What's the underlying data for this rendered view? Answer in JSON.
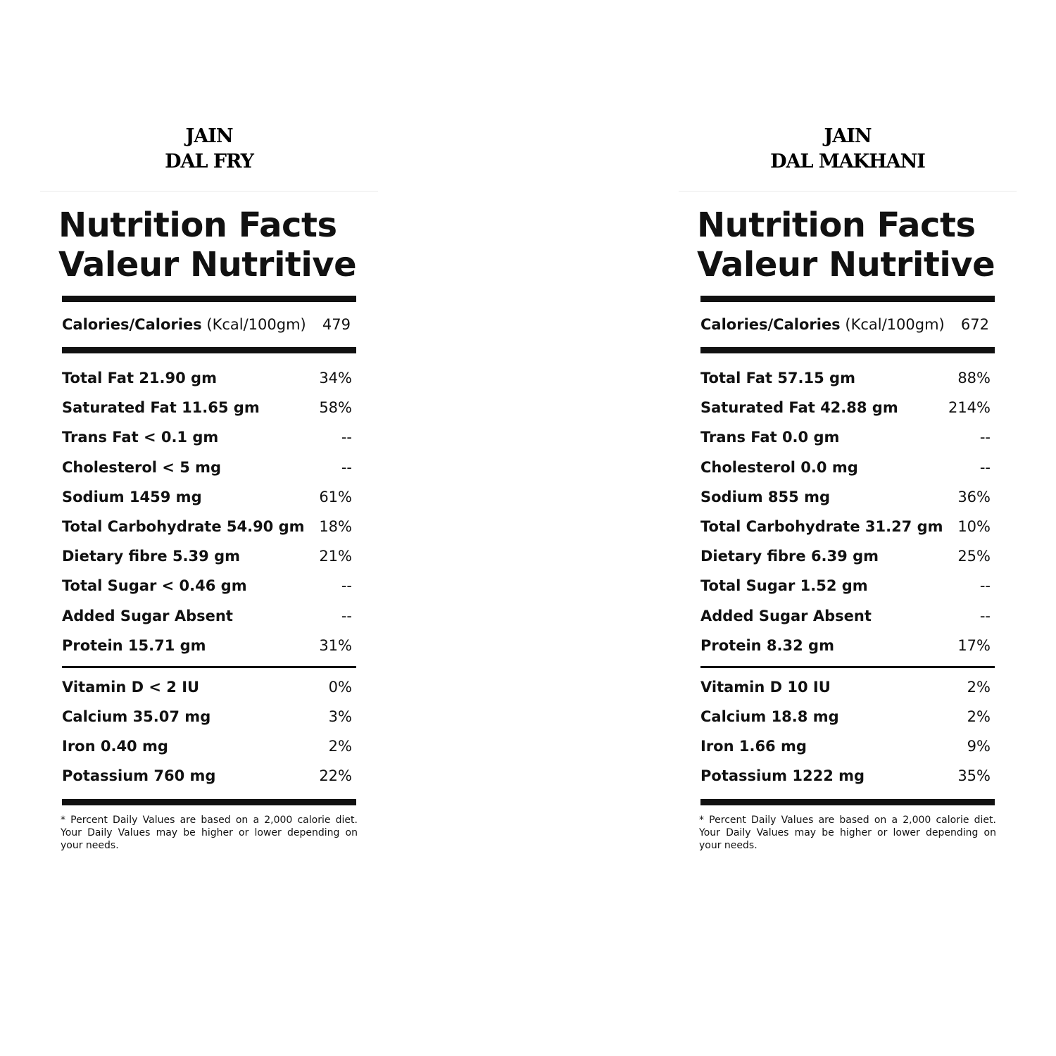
{
  "footnote": "* Percent Daily Values are based on a 2,000 calorie diet. Your Daily Values may be higher or lower depending on your needs.",
  "panels": [
    {
      "product_line1": "JAIN",
      "product_line2": "DAL FRY",
      "title_line1": "Nutrition Facts",
      "title_line2": "Valeur Nutritive",
      "calories_label": "Calories/Calories",
      "calories_unit": "(Kcal/100gm)",
      "calories_value": "479",
      "nutrients": [
        {
          "name": "Total Fat 21.90 gm",
          "dv": "34%"
        },
        {
          "name": "Saturated Fat 11.65 gm",
          "dv": "58%"
        },
        {
          "name": "Trans Fat < 0.1 gm",
          "dv": "--"
        },
        {
          "name": "Cholesterol < 5 mg",
          "dv": "--"
        },
        {
          "name": "Sodium 1459 mg",
          "dv": "61%"
        },
        {
          "name": "Total Carbohydrate 54.90 gm",
          "dv": "18%"
        },
        {
          "name": "Dietary fibre 5.39 gm",
          "dv": "21%"
        },
        {
          "name": "Total Sugar < 0.46 gm",
          "dv": "--"
        },
        {
          "name": "Added Sugar Absent",
          "dv": "--"
        },
        {
          "name": "Protein 15.71 gm",
          "dv": "31%"
        }
      ],
      "vitamins": [
        {
          "name": "Vitamin D < 2 IU",
          "dv": "0%"
        },
        {
          "name": "Calcium 35.07 mg",
          "dv": "3%"
        },
        {
          "name": "Iron 0.40 mg",
          "dv": "2%"
        },
        {
          "name": "Potassium 760 mg",
          "dv": "22%"
        }
      ]
    },
    {
      "product_line1": "JAIN",
      "product_line2": "DAL MAKHANI",
      "title_line1": "Nutrition Facts",
      "title_line2": "Valeur Nutritive",
      "calories_label": "Calories/Calories",
      "calories_unit": "(Kcal/100gm)",
      "calories_value": "672",
      "nutrients": [
        {
          "name": "Total Fat 57.15 gm",
          "dv": "88%"
        },
        {
          "name": "Saturated Fat 42.88 gm",
          "dv": "214%"
        },
        {
          "name": "Trans Fat 0.0 gm",
          "dv": "--"
        },
        {
          "name": "Cholesterol 0.0 mg",
          "dv": "--"
        },
        {
          "name": "Sodium 855 mg",
          "dv": "36%"
        },
        {
          "name": "Total Carbohydrate 31.27 gm",
          "dv": "10%"
        },
        {
          "name": "Dietary fibre 6.39 gm",
          "dv": "25%"
        },
        {
          "name": "Total Sugar 1.52 gm",
          "dv": "--"
        },
        {
          "name": "Added Sugar Absent",
          "dv": "--"
        },
        {
          "name": "Protein 8.32 gm",
          "dv": "17%"
        }
      ],
      "vitamins": [
        {
          "name": "Vitamin D 10 IU",
          "dv": "2%"
        },
        {
          "name": "Calcium 18.8 mg",
          "dv": "2%"
        },
        {
          "name": "Iron 1.66 mg",
          "dv": "9%"
        },
        {
          "name": "Potassium 1222 mg",
          "dv": "35%"
        }
      ]
    }
  ]
}
